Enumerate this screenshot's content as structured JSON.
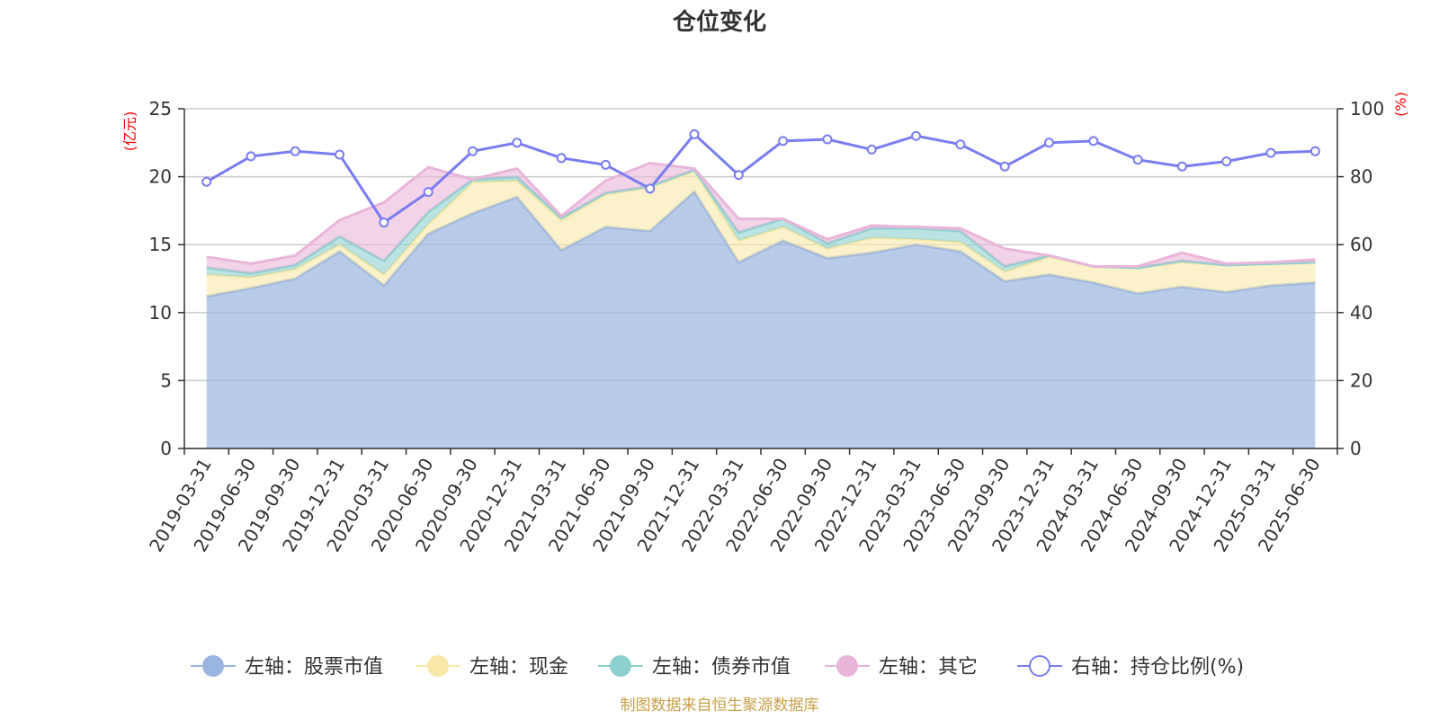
{
  "chart_data": {
    "type": "area",
    "title": "仓位变化",
    "categories": [
      "2019-03-31",
      "2019-06-30",
      "2019-09-30",
      "2019-12-31",
      "2020-03-31",
      "2020-06-30",
      "2020-09-30",
      "2020-12-31",
      "2021-03-31",
      "2021-06-30",
      "2021-09-30",
      "2021-12-31",
      "2022-03-31",
      "2022-06-30",
      "2022-09-30",
      "2022-12-31",
      "2023-03-31",
      "2023-06-30",
      "2023-09-30",
      "2023-12-31",
      "2024-03-31",
      "2024-06-30",
      "2024-09-30",
      "2024-12-31",
      "2025-03-31",
      "2025-06-30"
    ],
    "y_left": {
      "unit": "(亿元)",
      "range": [
        0,
        25
      ],
      "ticks": [
        "0",
        "5",
        "10",
        "15",
        "20",
        "25"
      ]
    },
    "y_right": {
      "unit": "(%)",
      "range": [
        0,
        100
      ],
      "ticks": [
        "0",
        "20",
        "40",
        "60",
        "80",
        "100"
      ]
    },
    "grid": true,
    "legend_position": "bottom",
    "series": [
      {
        "name": "左轴：股票市值",
        "axis": "left",
        "color": "#9ab5e0",
        "values": [
          11.2,
          11.8,
          12.5,
          14.5,
          12.0,
          15.8,
          17.3,
          18.5,
          14.6,
          16.3,
          16.0,
          18.9,
          13.7,
          15.3,
          14.0,
          14.4,
          15.0,
          14.5,
          12.3,
          12.8,
          12.2,
          11.4,
          11.9,
          11.5,
          12.0,
          12.2
        ]
      },
      {
        "name": "左轴：现金",
        "axis": "left",
        "color": "#f8e8a8",
        "values": [
          1.6,
          0.8,
          0.7,
          0.5,
          0.8,
          0.7,
          2.3,
          1.2,
          2.2,
          2.4,
          3.2,
          1.5,
          1.6,
          1.0,
          0.7,
          1.1,
          0.4,
          0.7,
          0.7,
          1.3,
          1.2,
          1.9,
          1.8,
          2.0,
          1.6,
          1.5
        ]
      },
      {
        "name": "左轴：债券市值",
        "axis": "left",
        "color": "#8dd0d0",
        "values": [
          0.5,
          0.3,
          0.3,
          0.6,
          1.0,
          0.9,
          0.2,
          0.3,
          0.2,
          0.1,
          0.1,
          0.1,
          0.6,
          0.6,
          0.4,
          0.7,
          0.8,
          0.8,
          0.4,
          0.1,
          0.0,
          0.0,
          0.1,
          0.0,
          0.0,
          0.0
        ]
      },
      {
        "name": "左轴：其它",
        "axis": "left",
        "color": "#e9b5d9",
        "values": [
          0.8,
          0.7,
          0.7,
          1.2,
          4.3,
          3.3,
          0.0,
          0.6,
          0.1,
          0.9,
          1.7,
          0.1,
          1.0,
          0.0,
          0.3,
          0.2,
          0.1,
          0.2,
          1.3,
          0.0,
          0.0,
          0.1,
          0.6,
          0.1,
          0.1,
          0.2
        ]
      },
      {
        "name": "右轴：持仓比例(%)",
        "axis": "right",
        "color": "#7a7df0",
        "values": [
          78.5,
          86.0,
          87.5,
          86.5,
          66.5,
          75.5,
          87.5,
          90.0,
          85.5,
          83.5,
          76.5,
          92.5,
          80.5,
          90.5,
          91.0,
          88.0,
          92.0,
          89.5,
          83.0,
          90.0,
          90.5,
          85.0,
          83.0,
          84.5,
          87.0,
          87.5
        ]
      }
    ]
  },
  "source_note": "制图数据来自恒生聚源数据库"
}
